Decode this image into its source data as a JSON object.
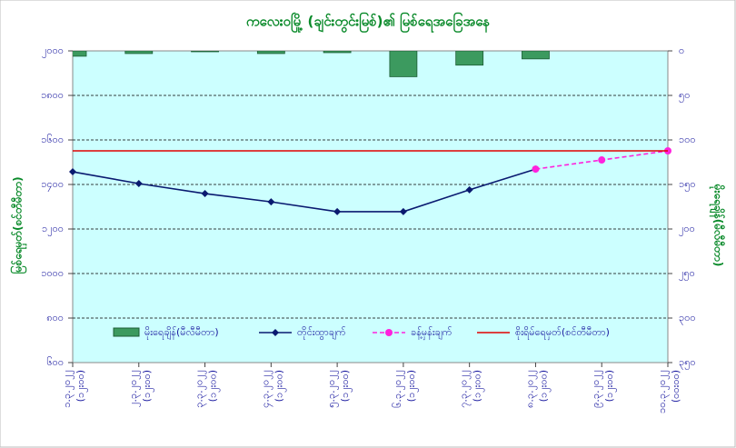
{
  "chart_data": {
    "type": "combo",
    "title": "ကလေးဝမြို့ (ချင်းတွင်းမြစ်)၏ မြစ်ရေအခြေအနေ",
    "ylabel": "မြစ်ရေမှတ်(စင်တီမီတာ)",
    "y2label": "မိုးရေချိန်(မီလီမီတာ)",
    "categories": [
      "၁.၃.၂၀၂၂",
      "၂.၃.၂၀၂၂",
      "၃.၃.၂၀၂၂",
      "၄.၃.၂၀၂၂",
      "၅.၃.၂၀၂၂",
      "၆.၃.၂၀၂၂",
      "၇.၃.၂၀၂၂",
      "၈.၃.၂၀၂၂",
      "၉.၃.၂၀၂၂",
      "၁၀.၃.၂၀၂၂"
    ],
    "category_times": [
      "(၁၂း၀၀)",
      "(၁၂း၀၀)",
      "(၁၂း၀၀)",
      "(၁၂း၀၀)",
      "(၁၂း၀၀)",
      "(၁၂း၀၀)",
      "(၁၂း၀၀)",
      "(၁၂း၀၀)",
      "(၁၂း၀၀)",
      "(၀၀း၀၀)"
    ],
    "series": [
      {
        "name": "မိုးရေချိန်(မီလီမီတာ)",
        "kind": "bar",
        "axis": "y2",
        "color": "#3c9a5f",
        "values": [
          6,
          3,
          1,
          3,
          2,
          29,
          16,
          9,
          null,
          null
        ]
      },
      {
        "name": "တိုင်းထွာချက်",
        "kind": "line",
        "color": "#0a1a70",
        "marker": "diamond",
        "values": [
          1457,
          1404,
          1359,
          1322,
          1278,
          1278,
          1376,
          1469,
          null,
          null
        ]
      },
      {
        "name": "ခန့်မှန်းချက်",
        "kind": "line",
        "color": "#ff22dd",
        "dashed": true,
        "marker": "circle",
        "values": [
          null,
          null,
          null,
          null,
          null,
          null,
          null,
          1469,
          1510,
          1551
        ]
      },
      {
        "name": "စိုးရိမ်ရေမှတ်(စင်တီမီတာ)",
        "kind": "line",
        "color": "#e00000",
        "values": [
          1551,
          1551,
          1551,
          1551,
          1551,
          1551,
          1551,
          1551,
          1551,
          1551
        ]
      }
    ],
    "ylim": [
      600,
      2000
    ],
    "yticks": [
      {
        "value": 600,
        "label": "၆၀၀"
      },
      {
        "value": 800,
        "label": "၈၀၀"
      },
      {
        "value": 1000,
        "label": "၁၀၀၀"
      },
      {
        "value": 1200,
        "label": "၁၂၀၀"
      },
      {
        "value": 1400,
        "label": "၁၄၀၀"
      },
      {
        "value": 1600,
        "label": "၁၆၀၀"
      },
      {
        "value": 1800,
        "label": "၁၈၀၀"
      },
      {
        "value": 2000,
        "label": "၂၀၀၀"
      }
    ],
    "y2lim": [
      0,
      350
    ],
    "y2_reversed": true,
    "y2ticks": [
      {
        "value": 0,
        "label": "၀"
      },
      {
        "value": 50,
        "label": "၅၀"
      },
      {
        "value": 100,
        "label": "၁၀၀"
      },
      {
        "value": 150,
        "label": "၁၅၀"
      },
      {
        "value": 200,
        "label": "၂၀၀"
      },
      {
        "value": 250,
        "label": "၂၅၀"
      },
      {
        "value": 300,
        "label": "၃၀၀"
      },
      {
        "value": 350,
        "label": "၃၅၀"
      }
    ],
    "grid": true,
    "legend": "bottom"
  }
}
